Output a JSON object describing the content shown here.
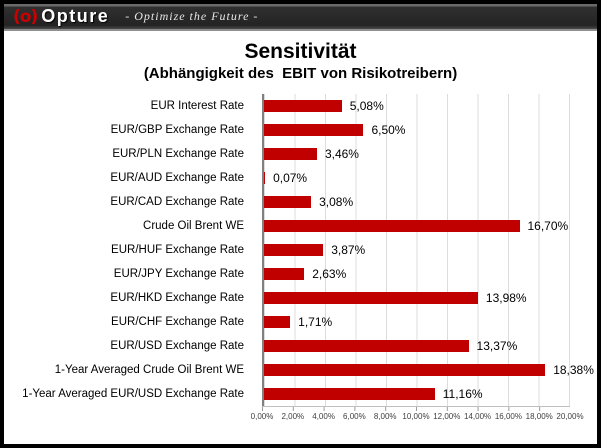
{
  "header": {
    "logo_mark": "(o)",
    "logo_text": "Opture",
    "tagline": "-  Optimize the Future  -"
  },
  "chart_data": {
    "type": "bar",
    "orientation": "horizontal",
    "title": "Sensitivität",
    "subtitle": "(Abhängigkeit des  EBIT von Risikotreibern)",
    "categories": [
      "EUR Interest Rate",
      "EUR/GBP Exchange Rate",
      "EUR/PLN Exchange Rate",
      "EUR/AUD Exchange Rate",
      "EUR/CAD Exchange Rate",
      "Crude Oil Brent WE",
      "EUR/HUF Exchange Rate",
      "EUR/JPY Exchange Rate",
      "EUR/HKD Exchange Rate",
      "EUR/CHF Exchange Rate",
      "EUR/USD Exchange Rate",
      "1-Year Averaged Crude Oil Brent WE",
      "1-Year Averaged EUR/USD Exchange Rate"
    ],
    "values": [
      5.08,
      6.5,
      3.46,
      0.07,
      3.08,
      16.7,
      3.87,
      2.63,
      13.98,
      1.71,
      13.37,
      18.38,
      11.16
    ],
    "value_labels": [
      "5,08%",
      "6,50%",
      "3,46%",
      "0,07%",
      "3,08%",
      "16,70%",
      "3,87%",
      "2,63%",
      "13,98%",
      "1,71%",
      "13,37%",
      "18,38%",
      "11,16%"
    ],
    "xlim": [
      0,
      20
    ],
    "x_tick_labels": [
      "0,00%",
      "2,00%",
      "4,00%",
      "6,00%",
      "8,00%",
      "10,00%",
      "12,00%",
      "14,00%",
      "16,00%",
      "18,00%",
      "20,00%"
    ],
    "bar_color": "#C00000",
    "gridline_color": "#DCDCDC",
    "axis_line_color": "#808080",
    "grid": "vertical-only",
    "legend_position": "none"
  }
}
